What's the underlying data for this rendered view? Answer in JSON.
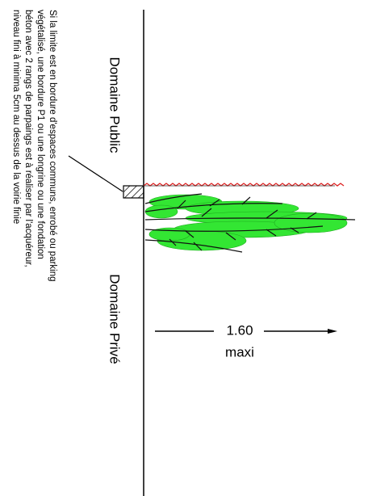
{
  "labels": {
    "public": "Domaine Public",
    "private": "Domaine Privé",
    "note": [
      "Si la limite est en bordure d'espaces communs, enrobé ou parking",
      "végétalisé, une bordure P1 ou une longrine ou une fondation",
      "béton avec 2 rangs de parpaings est à réaliser par l'acquéreur,",
      "niveau fini à minima 5cm au dessus de la voirie finie"
    ],
    "dimension": "1.60",
    "dimension_note": "maxi"
  }
}
